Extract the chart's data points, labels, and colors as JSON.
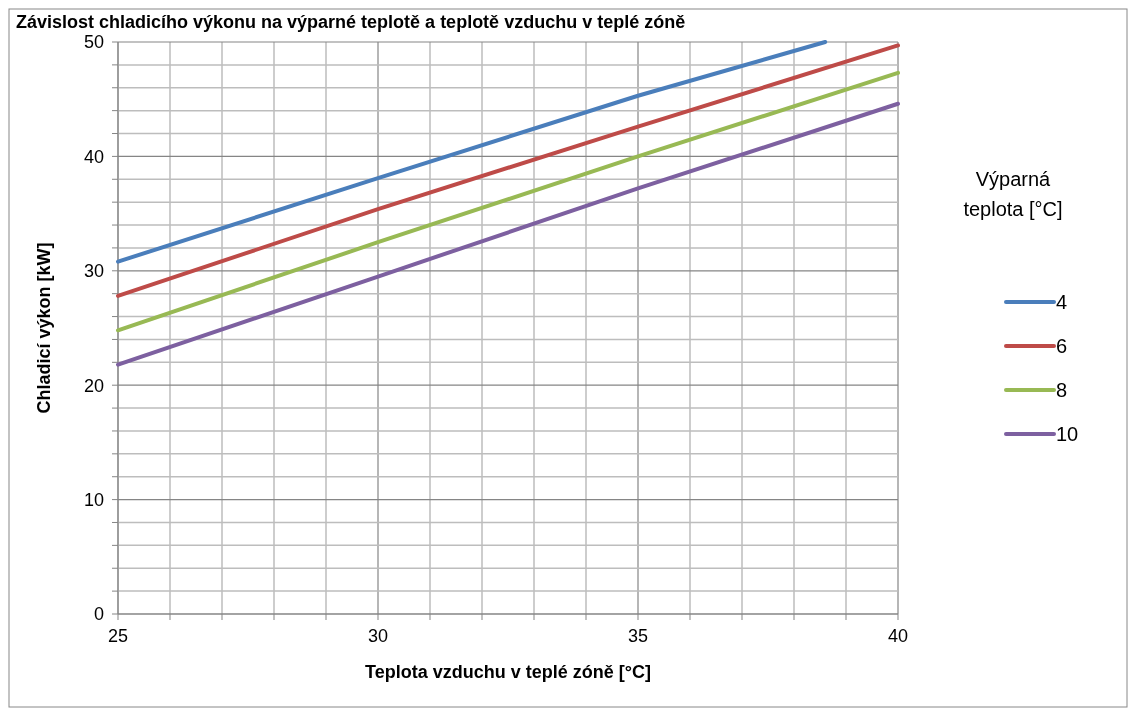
{
  "chart_data": {
    "type": "line",
    "title": "Závislost chladicího výkonu na výparné teplotě a teplotě vzduchu v teplé zóně",
    "xlabel": "Teplota vzduchu v teplé zóně [°C]",
    "ylabel": "Chladicí výkon [kW]",
    "legend_title": "Výparná teplota [°C]",
    "x": [
      25,
      30,
      35,
      40
    ],
    "series": [
      {
        "name": "4",
        "color": "#4a7ebb",
        "x": [
          25,
          30,
          35,
          38.6
        ],
        "values": [
          30.8,
          38.1,
          45.3,
          50
        ]
      },
      {
        "name": "6",
        "color": "#be4b48",
        "values": [
          27.8,
          35.4,
          42.6,
          49.7
        ]
      },
      {
        "name": "8",
        "color": "#98b954",
        "values": [
          24.8,
          32.5,
          40.0,
          47.3
        ]
      },
      {
        "name": "10",
        "color": "#7d60a0",
        "values": [
          21.8,
          29.5,
          37.2,
          44.6
        ]
      }
    ],
    "xlim": [
      25,
      40
    ],
    "xticks": [
      25,
      {
        "value": 26,
        "label": null
      },
      {
        "value": 27,
        "label": null
      },
      {
        "value": 28,
        "label": null
      },
      {
        "value": 29,
        "label": null
      },
      30,
      {
        "value": 31,
        "label": null
      },
      {
        "value": 32,
        "label": null
      },
      {
        "value": 33,
        "label": null
      },
      {
        "value": 34,
        "label": null
      },
      35,
      {
        "value": 36,
        "label": null
      },
      {
        "value": 37,
        "label": null
      },
      {
        "value": 38,
        "label": null
      },
      {
        "value": 39,
        "label": null
      },
      40
    ],
    "ylim": [
      0,
      50
    ],
    "yticks": [
      0,
      {
        "value": 2,
        "label": null
      },
      {
        "value": 4,
        "label": null
      },
      {
        "value": 6,
        "label": null
      },
      {
        "value": 8,
        "label": null
      },
      10,
      {
        "value": 12,
        "label": null
      },
      {
        "value": 14,
        "label": null
      },
      {
        "value": 16,
        "label": null
      },
      {
        "value": 18,
        "label": null
      },
      20,
      {
        "value": 22,
        "label": null
      },
      {
        "value": 24,
        "label": null
      },
      {
        "value": 26,
        "label": null
      },
      {
        "value": 28,
        "label": null
      },
      30,
      {
        "value": 32,
        "label": null
      },
      {
        "value": 34,
        "label": null
      },
      {
        "value": 36,
        "label": null
      },
      {
        "value": 38,
        "label": null
      },
      40,
      {
        "value": 42,
        "label": null
      },
      {
        "value": 44,
        "label": null
      },
      {
        "value": 46,
        "label": null
      },
      {
        "value": 48,
        "label": null
      },
      50
    ],
    "grid": true,
    "legend": "right",
    "marker": "none",
    "line_style": "solid"
  }
}
